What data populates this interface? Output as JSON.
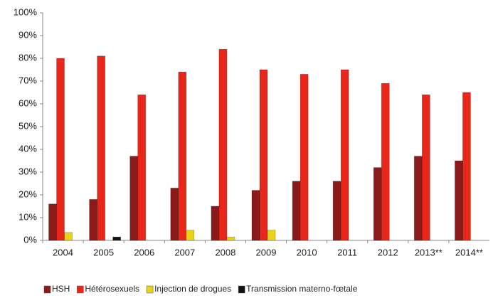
{
  "chart_data": {
    "type": "bar",
    "categories": [
      "2004",
      "2005",
      "2006",
      "2007",
      "2008",
      "2009",
      "2010",
      "2011",
      "2012",
      "2013**",
      "2014**"
    ],
    "series": [
      {
        "name": "HSH",
        "color": "#8b1a1a",
        "values": [
          16,
          18,
          37,
          23,
          15,
          22,
          26,
          26,
          32,
          37,
          35
        ]
      },
      {
        "name": "Hétérosexuels",
        "color": "#e8261a",
        "values": [
          80,
          81,
          64,
          74,
          84,
          75,
          73,
          75,
          69,
          64,
          65
        ]
      },
      {
        "name": "Injection de drogues",
        "color": "#e8d21a",
        "values": [
          3.5,
          0,
          0,
          4.5,
          1.5,
          4.5,
          0,
          0,
          0,
          0,
          0
        ]
      },
      {
        "name": "Transmission materno-fœtale",
        "color": "#111111",
        "values": [
          0,
          1.5,
          0,
          0,
          0,
          0,
          0,
          0,
          0,
          0,
          0
        ]
      }
    ],
    "ylim": [
      0,
      100
    ],
    "yticks": [
      {
        "value": 0,
        "label": "0%"
      },
      {
        "value": 10,
        "label": "10%"
      },
      {
        "value": 20,
        "label": "20%"
      },
      {
        "value": 30,
        "label": "30%"
      },
      {
        "value": 40,
        "label": "40%"
      },
      {
        "value": 50,
        "label": "50%"
      },
      {
        "value": 60,
        "label": "60%"
      },
      {
        "value": 70,
        "label": "70%"
      },
      {
        "value": 80,
        "label": "80%"
      },
      {
        "value": 90,
        "label": "90%"
      },
      {
        "value": 100,
        "label": "100%"
      }
    ],
    "grid": false,
    "legend": "bottom"
  }
}
